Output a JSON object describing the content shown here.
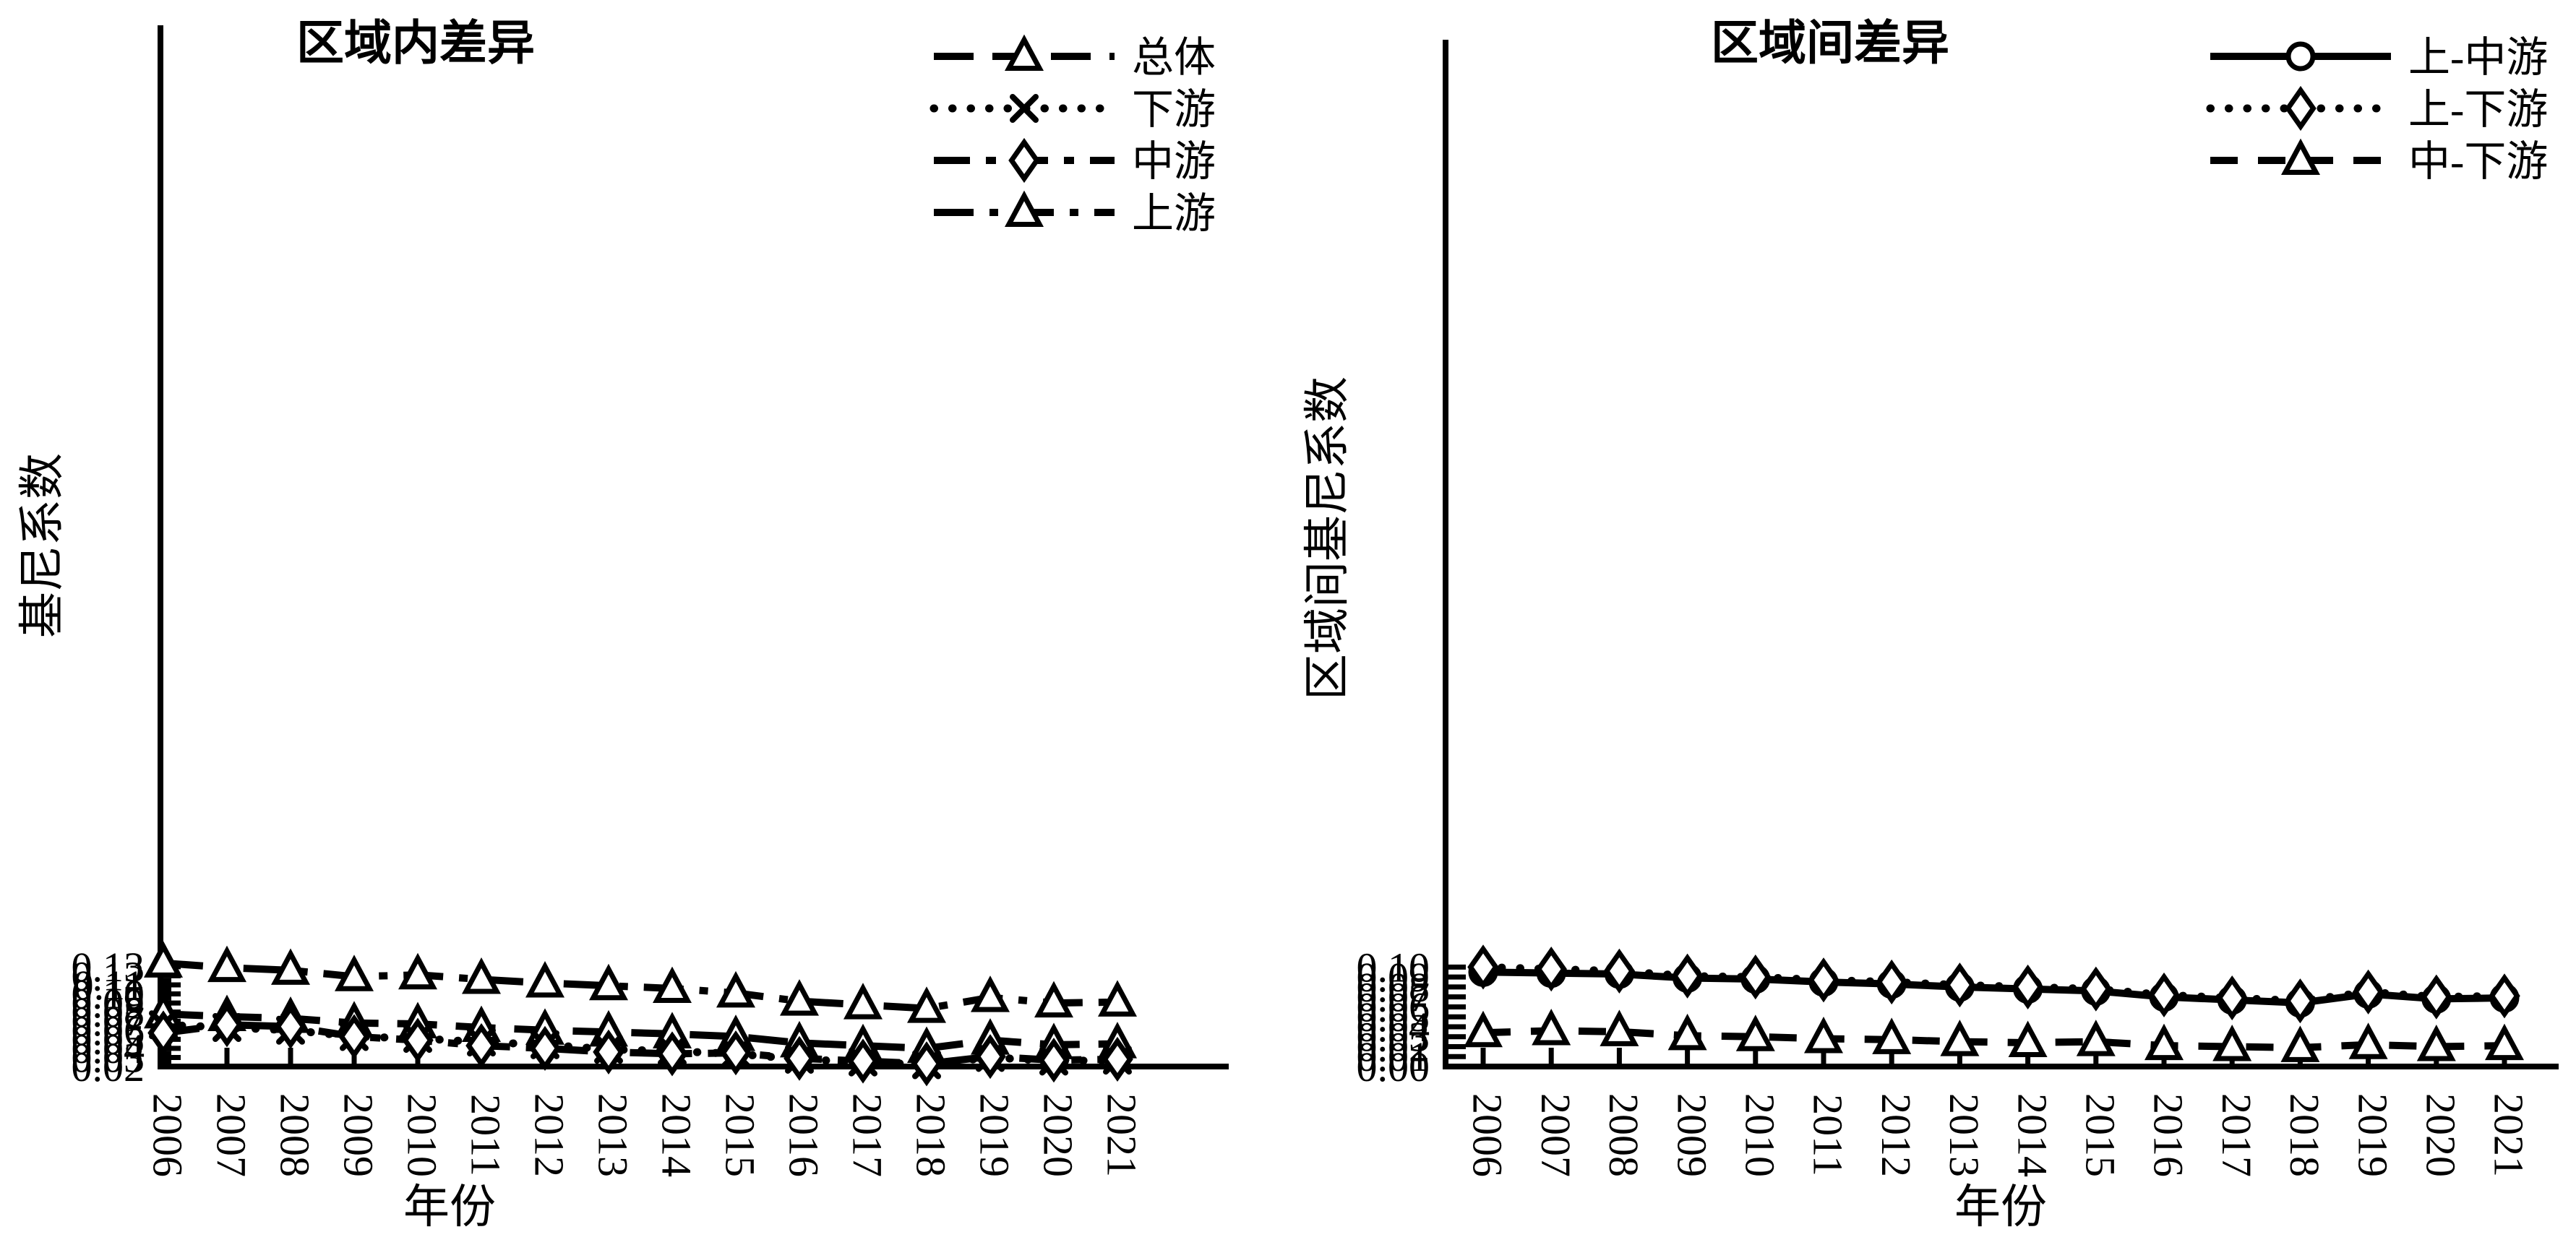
{
  "figure": {
    "background_color": "#ffffff",
    "ink_color": "#000000",
    "x_axis_label": "年份",
    "years": [
      "2006",
      "2007",
      "2008",
      "2009",
      "2010",
      "2011",
      "2012",
      "2013",
      "2014",
      "2015",
      "2016",
      "2017",
      "2018",
      "2019",
      "2020",
      "2021"
    ]
  },
  "chart_data": [
    {
      "type": "line",
      "title": "区域内差异",
      "xlabel": "年份",
      "ylabel": "基尼系数",
      "x": [
        "2006",
        "2007",
        "2008",
        "2009",
        "2010",
        "2011",
        "2012",
        "2013",
        "2014",
        "2015",
        "2016",
        "2017",
        "2018",
        "2019",
        "2020",
        "2021"
      ],
      "ylim": [
        0.02,
        0.135
      ],
      "ytick_step": 0.01,
      "yticks": [
        "0.02",
        "0.03",
        "0.04",
        "0.05",
        "0.06",
        "0.07",
        "0.08",
        "0.09",
        "0.10",
        "0.11",
        "0.12",
        "0.13"
      ],
      "grid": false,
      "legend_position": "top-right-inside",
      "series": [
        {
          "name": "总体",
          "marker": "triangle",
          "linestyle": "long-dash",
          "values": [
            0.078,
            0.075,
            0.073,
            0.068,
            0.067,
            0.063,
            0.06,
            0.058,
            0.056,
            0.053,
            0.046,
            0.043,
            0.04,
            0.049,
            0.044,
            0.045
          ]
        },
        {
          "name": "下游",
          "marker": "x",
          "linestyle": "dotted",
          "values": [
            0.066,
            0.063,
            0.06,
            0.053,
            0.051,
            0.047,
            0.044,
            0.039,
            0.037,
            0.034,
            0.028,
            0.025,
            0.022,
            0.03,
            0.026,
            0.027
          ]
        },
        {
          "name": "中游",
          "marker": "diamond",
          "linestyle": "dash-dot2",
          "values": [
            0.057,
            0.066,
            0.064,
            0.053,
            0.049,
            0.043,
            0.04,
            0.036,
            0.034,
            0.035,
            0.029,
            0.026,
            0.023,
            0.031,
            0.027,
            0.028
          ]
        },
        {
          "name": "上游",
          "marker": "triangle",
          "linestyle": "dash-dot",
          "values": [
            0.134,
            0.129,
            0.126,
            0.119,
            0.121,
            0.116,
            0.112,
            0.109,
            0.106,
            0.101,
            0.092,
            0.088,
            0.084,
            0.096,
            0.09,
            0.091
          ]
        }
      ]
    },
    {
      "type": "line",
      "title": "区域间差异",
      "xlabel": "年份",
      "ylabel": "区域间基尼系数",
      "x": [
        "2006",
        "2007",
        "2008",
        "2009",
        "2010",
        "2011",
        "2012",
        "2013",
        "2014",
        "2015",
        "2016",
        "2017",
        "2018",
        "2019",
        "2020",
        "2021"
      ],
      "ylim": [
        0.0,
        0.105
      ],
      "ytick_step": 0.01,
      "yticks": [
        "0.00",
        "0.01",
        "0.02",
        "0.03",
        "0.04",
        "0.05",
        "0.06",
        "0.07",
        "0.08",
        "0.09",
        "0.10"
      ],
      "grid": false,
      "legend_position": "top-right-inside",
      "series": [
        {
          "name": "上-中游",
          "marker": "circle",
          "linestyle": "solid",
          "values": [
            0.095,
            0.094,
            0.093,
            0.089,
            0.088,
            0.085,
            0.083,
            0.08,
            0.078,
            0.076,
            0.07,
            0.067,
            0.064,
            0.073,
            0.068,
            0.069
          ]
        },
        {
          "name": "上-下游",
          "marker": "diamond",
          "linestyle": "dotted",
          "values": [
            0.1,
            0.098,
            0.096,
            0.091,
            0.09,
            0.087,
            0.085,
            0.082,
            0.08,
            0.078,
            0.072,
            0.069,
            0.066,
            0.075,
            0.07,
            0.071
          ]
        },
        {
          "name": "中-下游",
          "marker": "triangle",
          "linestyle": "dash",
          "values": [
            0.034,
            0.036,
            0.035,
            0.031,
            0.03,
            0.028,
            0.027,
            0.025,
            0.024,
            0.025,
            0.021,
            0.02,
            0.019,
            0.022,
            0.02,
            0.021
          ]
        }
      ]
    }
  ]
}
